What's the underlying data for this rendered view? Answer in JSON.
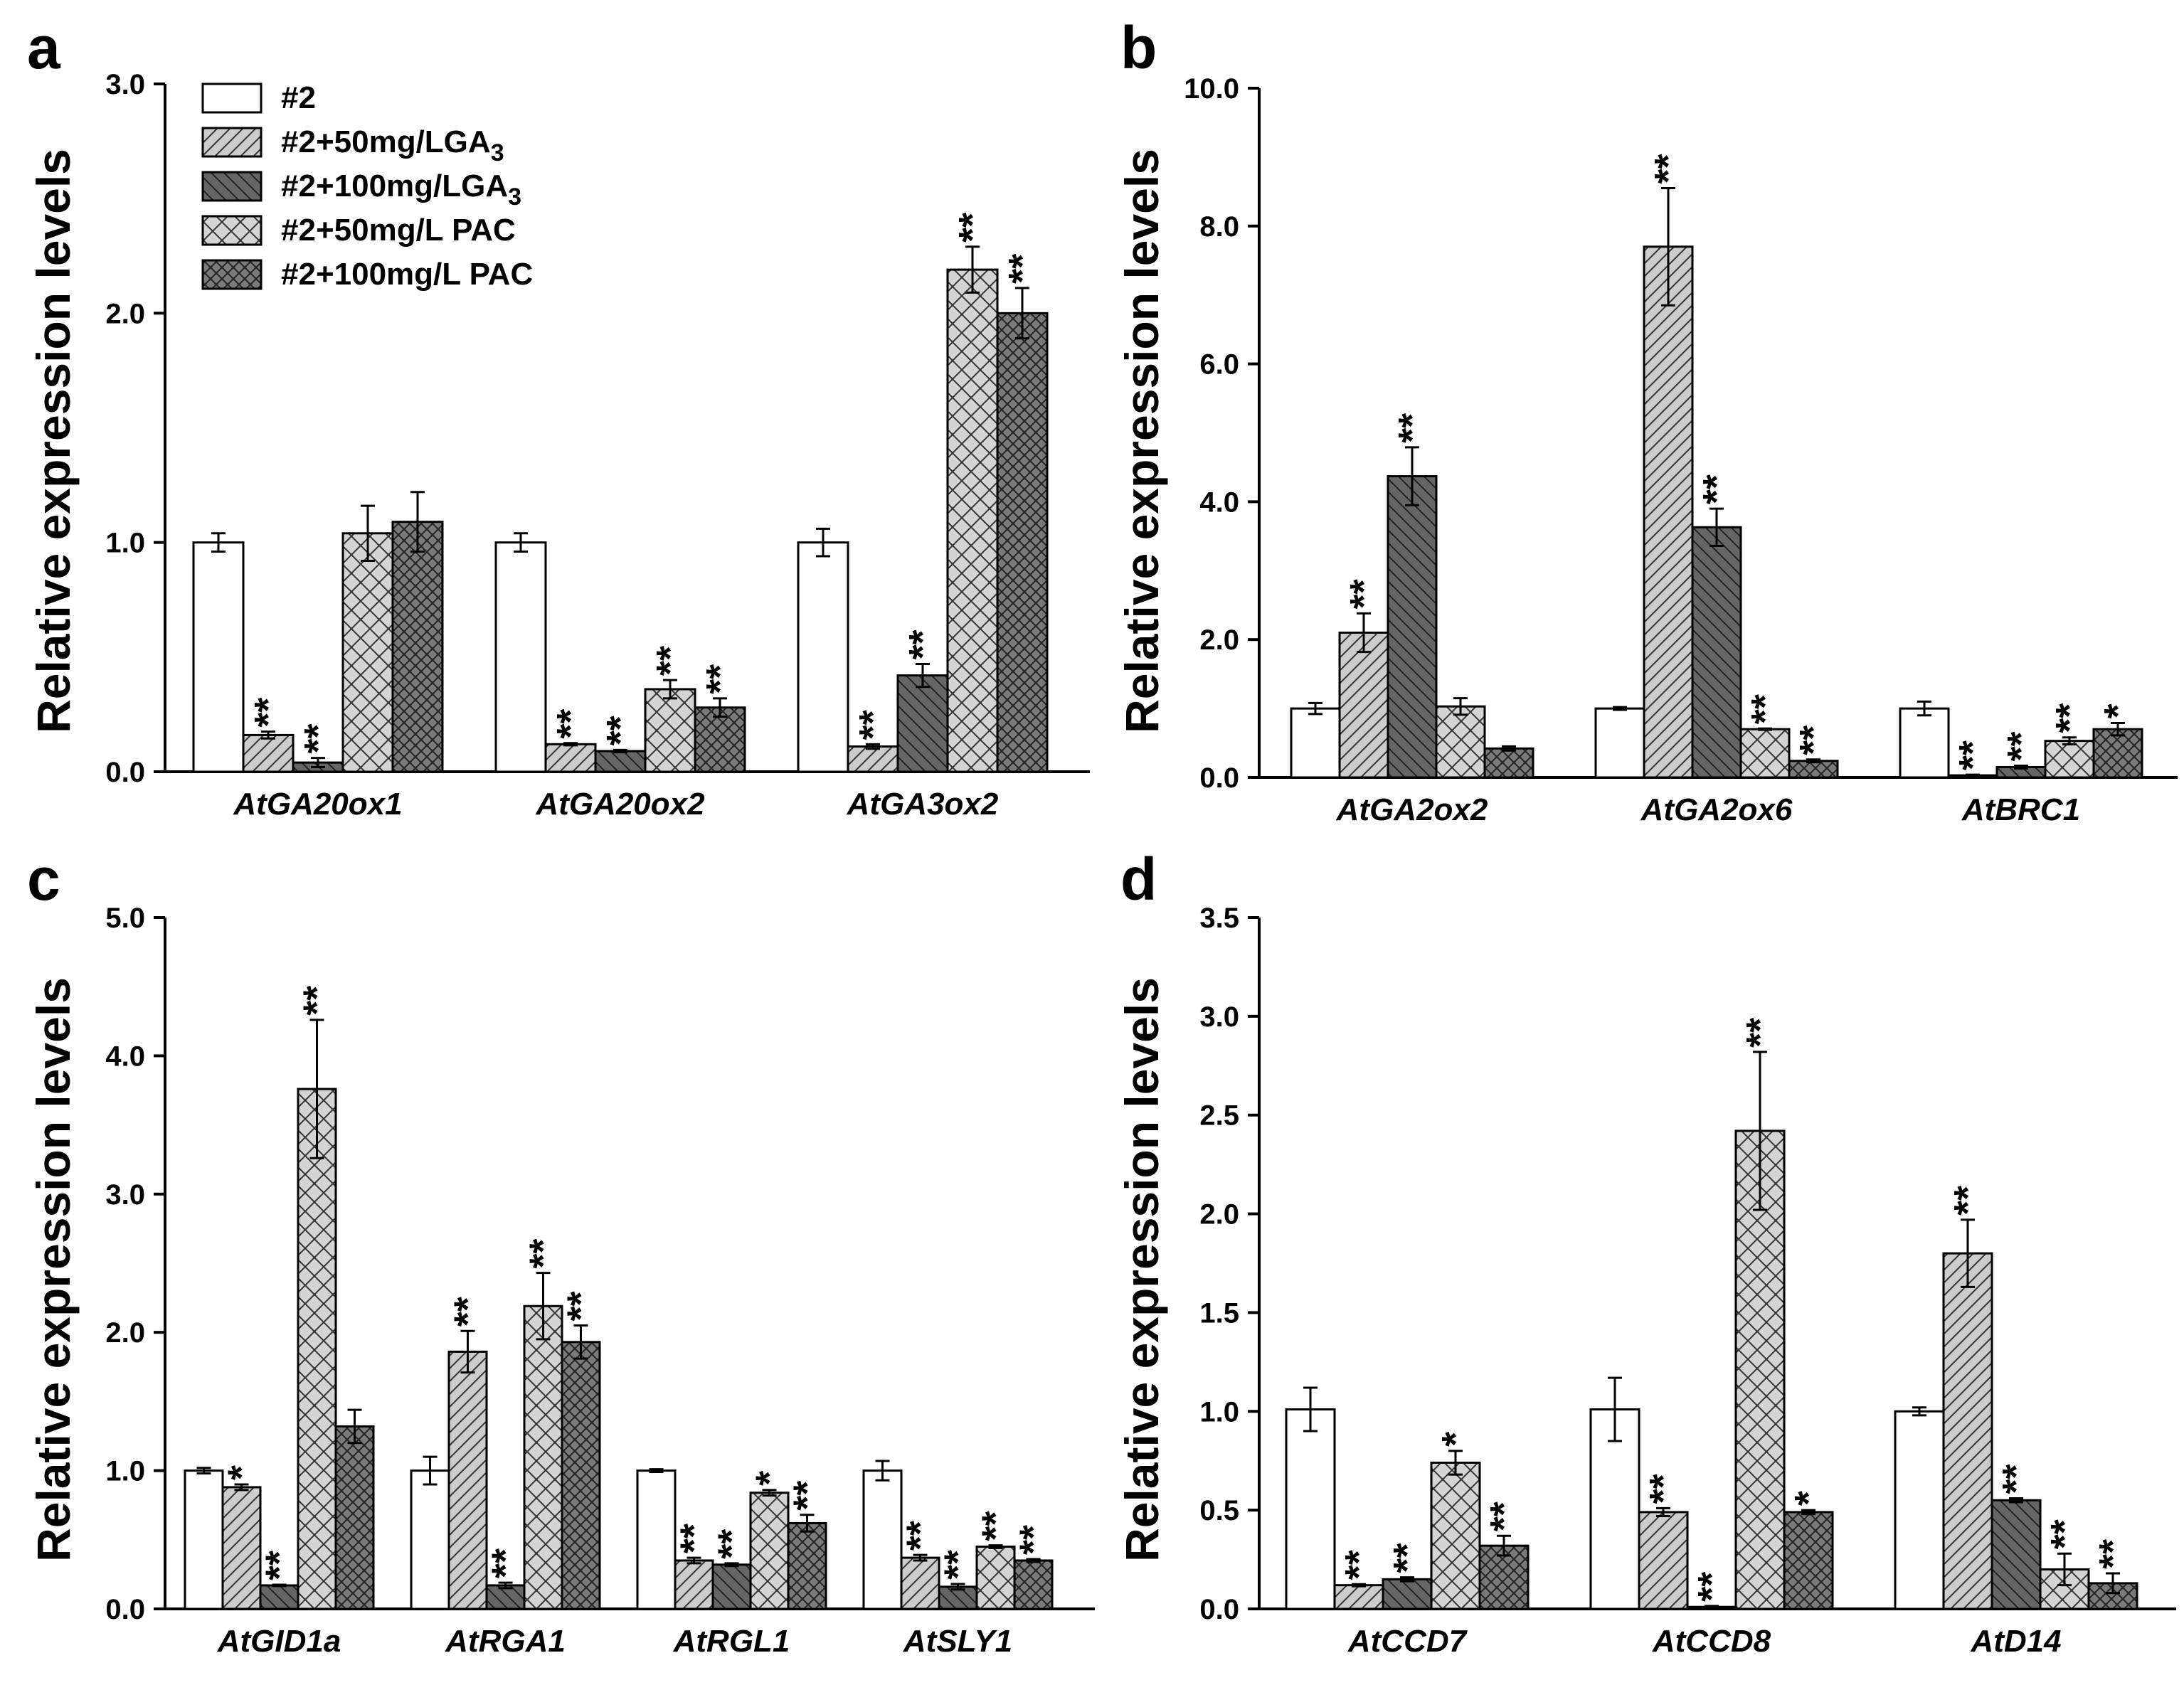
{
  "colors": {
    "ctrl": "#ffffff",
    "ga50": "#cccccc",
    "ga100": "#666666",
    "pac50": "#d4d4d4",
    "pac100": "#7a7a7a",
    "ink": "#000000"
  },
  "chart_data": [
    {
      "type": "bar",
      "panel": "a",
      "ylabel": "Relative expression levels",
      "ylim": [
        0,
        3.0
      ],
      "yticks": [
        "0.0",
        "1.0",
        "2.0",
        "3.0"
      ],
      "categories": [
        "AtGA20ox1",
        "AtGA20ox2",
        "AtGA3ox2"
      ],
      "legend": {
        "placement": "top-left",
        "entries": [
          {
            "label": "#2"
          },
          {
            "label": "#2+50mg/LGA",
            "sub": "3"
          },
          {
            "label": "#2+100mg/LGA",
            "sub": "3"
          },
          {
            "label": "#2+50mg/L PAC"
          },
          {
            "label": "#2+100mg/L PAC"
          }
        ]
      },
      "series": [
        {
          "name": "#2",
          "values": [
            1.0,
            1.0,
            1.0
          ],
          "errors": [
            0.04,
            0.04,
            0.06
          ],
          "sig": [
            "",
            "",
            ""
          ]
        },
        {
          "name": "#2+50mg/LGA3",
          "values": [
            0.16,
            0.12,
            0.11
          ],
          "errors": [
            0.015,
            0.005,
            0.01
          ],
          "sig": [
            "**",
            "**",
            "**"
          ]
        },
        {
          "name": "#2+100mg/LGA3",
          "values": [
            0.04,
            0.09,
            0.42
          ],
          "errors": [
            0.02,
            0.005,
            0.05
          ],
          "sig": [
            "**",
            "**",
            "**"
          ]
        },
        {
          "name": "#2+50mg/L PAC",
          "values": [
            1.04,
            0.36,
            2.19
          ],
          "errors": [
            0.12,
            0.04,
            0.1
          ],
          "sig": [
            "",
            "**",
            "**"
          ]
        },
        {
          "name": "#2+100mg/L PAC",
          "values": [
            1.09,
            0.28,
            2.0
          ],
          "errors": [
            0.13,
            0.04,
            0.11
          ],
          "sig": [
            "",
            "**",
            "**"
          ]
        }
      ]
    },
    {
      "type": "bar",
      "panel": "b",
      "ylabel": "Relative expression levels",
      "ylim": [
        0,
        10.0
      ],
      "yticks": [
        "0.0",
        "2.0",
        "4.0",
        "6.0",
        "8.0",
        "10.0"
      ],
      "categories": [
        "AtGA2ox2",
        "AtGA2ox6",
        "AtBRC1"
      ],
      "series": [
        {
          "name": "#2",
          "values": [
            1.0,
            1.0,
            1.0
          ],
          "errors": [
            0.08,
            0.02,
            0.1
          ],
          "sig": [
            "",
            "",
            ""
          ]
        },
        {
          "name": "#2+50mg/LGA3",
          "values": [
            2.1,
            7.7,
            0.03
          ],
          "errors": [
            0.28,
            0.85,
            0.01
          ],
          "sig": [
            "**",
            "**",
            "**"
          ]
        },
        {
          "name": "#2+100mg/LGA3",
          "values": [
            4.37,
            3.63,
            0.15
          ],
          "errors": [
            0.42,
            0.27,
            0.02
          ],
          "sig": [
            "**",
            "**",
            "**"
          ]
        },
        {
          "name": "#2+50mg/L PAC",
          "values": [
            1.03,
            0.7,
            0.53
          ],
          "errors": [
            0.12,
            0.01,
            0.05
          ],
          "sig": [
            "",
            "**",
            "**"
          ]
        },
        {
          "name": "#2+100mg/L PAC",
          "values": [
            0.42,
            0.24,
            0.7
          ],
          "errors": [
            0.03,
            0.02,
            0.09
          ],
          "sig": [
            "",
            "**",
            "*"
          ]
        }
      ]
    },
    {
      "type": "bar",
      "panel": "c",
      "ylabel": "Relative expression levels",
      "ylim": [
        0,
        5.0
      ],
      "yticks": [
        "0.0",
        "1.0",
        "2.0",
        "3.0",
        "4.0",
        "5.0"
      ],
      "categories": [
        "AtGID1a",
        "AtRGA1",
        "AtRGL1",
        "AtSLY1"
      ],
      "series": [
        {
          "name": "#2",
          "values": [
            1.0,
            1.0,
            1.0,
            1.0
          ],
          "errors": [
            0.02,
            0.1,
            0.01,
            0.07
          ],
          "sig": [
            "",
            "",
            "",
            ""
          ]
        },
        {
          "name": "#2+50mg/LGA3",
          "values": [
            0.88,
            1.86,
            0.35,
            0.37
          ],
          "errors": [
            0.02,
            0.15,
            0.02,
            0.02
          ],
          "sig": [
            "*",
            "**",
            "**",
            "**"
          ]
        },
        {
          "name": "#2+100mg/LGA3",
          "values": [
            0.17,
            0.17,
            0.32,
            0.16
          ],
          "errors": [
            0.005,
            0.02,
            0.01,
            0.02
          ],
          "sig": [
            "**",
            "**",
            "**",
            "**"
          ]
        },
        {
          "name": "#2+50mg/L PAC",
          "values": [
            3.76,
            2.19,
            0.84,
            0.45
          ],
          "errors": [
            0.5,
            0.24,
            0.02,
            0.01
          ],
          "sig": [
            "**",
            "**",
            "*",
            "**"
          ]
        },
        {
          "name": "#2+100mg/L PAC",
          "values": [
            1.32,
            1.93,
            0.62,
            0.35
          ],
          "errors": [
            0.12,
            0.12,
            0.06,
            0.01
          ],
          "sig": [
            "",
            "**",
            "**",
            "**"
          ]
        }
      ]
    },
    {
      "type": "bar",
      "panel": "d",
      "ylabel": "Relative expression levels",
      "ylim": [
        0,
        3.5
      ],
      "yticks": [
        "0.0",
        "0.5",
        "1.0",
        "1.5",
        "2.0",
        "2.5",
        "3.0",
        "3.5"
      ],
      "categories": [
        "AtCCD7",
        "AtCCD8",
        "AtD14"
      ],
      "series": [
        {
          "name": "#2",
          "values": [
            1.01,
            1.01,
            1.0
          ],
          "errors": [
            0.11,
            0.16,
            0.02
          ],
          "sig": [
            "",
            "",
            ""
          ]
        },
        {
          "name": "#2+50mg/LGA3",
          "values": [
            0.12,
            0.49,
            1.8
          ],
          "errors": [
            0.005,
            0.02,
            0.17
          ],
          "sig": [
            "**",
            "**",
            "**"
          ]
        },
        {
          "name": "#2+100mg/LGA3",
          "values": [
            0.15,
            0.01,
            0.55
          ],
          "errors": [
            0.01,
            0.005,
            0.01
          ],
          "sig": [
            "**",
            "**",
            "**"
          ]
        },
        {
          "name": "#2+50mg/L PAC",
          "values": [
            0.74,
            2.42,
            0.2
          ],
          "errors": [
            0.06,
            0.4,
            0.08
          ],
          "sig": [
            "*",
            "**",
            "**"
          ]
        },
        {
          "name": "#2+100mg/L PAC",
          "values": [
            0.32,
            0.49,
            0.13
          ],
          "errors": [
            0.05,
            0.01,
            0.05
          ],
          "sig": [
            "**",
            "*",
            "**"
          ]
        }
      ]
    }
  ]
}
